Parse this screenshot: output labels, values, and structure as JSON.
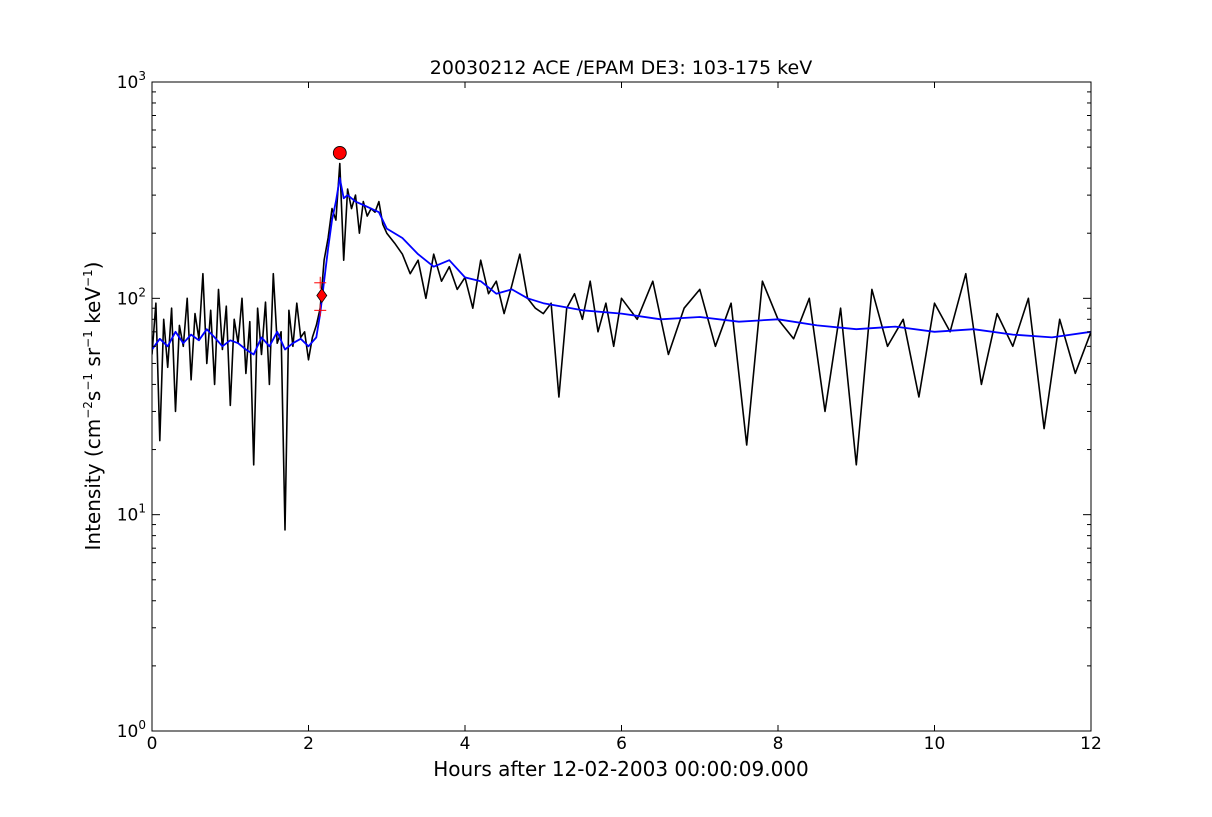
{
  "chart_data": {
    "type": "line",
    "title": "20030212 ACE /EPAM DE3: 103-175 keV",
    "xlabel": "Hours after 12-02-2003 00:00:09.000",
    "ylabel": {
      "prefix": "Intensity (cm",
      "sup1": "−2",
      "mid1": "s",
      "sup2": "−1",
      "mid2": " sr",
      "sup3": "−1",
      "mid3": " keV",
      "sup4": "−1",
      "suffix": ")"
    },
    "xlim": [
      0,
      12
    ],
    "ylim": [
      1,
      1000
    ],
    "yscale": "log",
    "grid": false,
    "x_ticks": [
      "0",
      "2",
      "4",
      "6",
      "8",
      "10",
      "12"
    ],
    "y_ticks": [
      {
        "base": "10",
        "exp": "0"
      },
      {
        "base": "10",
        "exp": "1"
      },
      {
        "base": "10",
        "exp": "2"
      },
      {
        "base": "10",
        "exp": "3"
      }
    ],
    "series": [
      {
        "color": "#000000",
        "description": "raw intensity",
        "x": [
          0.0,
          0.05,
          0.1,
          0.15,
          0.2,
          0.25,
          0.3,
          0.35,
          0.4,
          0.45,
          0.5,
          0.55,
          0.6,
          0.65,
          0.7,
          0.75,
          0.8,
          0.85,
          0.9,
          0.95,
          1.0,
          1.05,
          1.1,
          1.15,
          1.2,
          1.25,
          1.3,
          1.35,
          1.4,
          1.45,
          1.5,
          1.55,
          1.6,
          1.65,
          1.7,
          1.75,
          1.8,
          1.85,
          1.9,
          1.95,
          2.0,
          2.05,
          2.1,
          2.15,
          2.2,
          2.25,
          2.3,
          2.35,
          2.4,
          2.45,
          2.5,
          2.55,
          2.6,
          2.65,
          2.7,
          2.75,
          2.8,
          2.85,
          2.9,
          2.95,
          3.0,
          3.1,
          3.2,
          3.3,
          3.4,
          3.5,
          3.6,
          3.7,
          3.8,
          3.9,
          4.0,
          4.1,
          4.2,
          4.3,
          4.4,
          4.5,
          4.6,
          4.7,
          4.8,
          4.9,
          5.0,
          5.1,
          5.2,
          5.3,
          5.4,
          5.5,
          5.6,
          5.7,
          5.8,
          5.9,
          6.0,
          6.2,
          6.4,
          6.6,
          6.8,
          7.0,
          7.2,
          7.4,
          7.6,
          7.8,
          8.0,
          8.2,
          8.4,
          8.6,
          8.8,
          9.0,
          9.2,
          9.4,
          9.6,
          9.8,
          10.0,
          10.2,
          10.4,
          10.6,
          10.8,
          11.0,
          11.2,
          11.4,
          11.6,
          11.8,
          12.0
        ],
        "y": [
          55,
          95,
          22,
          80,
          48,
          90,
          30,
          75,
          60,
          100,
          42,
          85,
          65,
          130,
          50,
          88,
          40,
          110,
          58,
          92,
          32,
          80,
          62,
          100,
          45,
          78,
          17,
          90,
          55,
          96,
          40,
          130,
          62,
          70,
          8.5,
          88,
          60,
          95,
          66,
          70,
          52,
          66,
          75,
          90,
          150,
          190,
          260,
          230,
          420,
          150,
          320,
          260,
          300,
          200,
          280,
          240,
          260,
          250,
          280,
          220,
          200,
          180,
          160,
          130,
          150,
          100,
          160,
          120,
          140,
          110,
          125,
          90,
          150,
          105,
          120,
          85,
          115,
          160,
          100,
          90,
          85,
          95,
          35,
          90,
          105,
          80,
          120,
          70,
          95,
          60,
          100,
          80,
          120,
          55,
          90,
          110,
          60,
          95,
          21,
          120,
          80,
          65,
          100,
          30,
          90,
          17,
          110,
          60,
          80,
          35,
          95,
          70,
          130,
          40,
          85,
          60,
          100,
          25,
          80,
          45,
          70
        ]
      },
      {
        "color": "#0000ff",
        "description": "smoothed intensity",
        "x": [
          0.0,
          0.1,
          0.2,
          0.3,
          0.4,
          0.5,
          0.6,
          0.7,
          0.8,
          0.9,
          1.0,
          1.1,
          1.2,
          1.3,
          1.4,
          1.5,
          1.6,
          1.7,
          1.8,
          1.9,
          2.0,
          2.1,
          2.15,
          2.2,
          2.25,
          2.3,
          2.35,
          2.4,
          2.45,
          2.5,
          2.6,
          2.7,
          2.8,
          2.9,
          3.0,
          3.2,
          3.4,
          3.6,
          3.8,
          4.0,
          4.2,
          4.4,
          4.6,
          4.8,
          5.0,
          5.5,
          6.0,
          6.5,
          7.0,
          7.5,
          8.0,
          8.5,
          9.0,
          9.5,
          10.0,
          10.5,
          11.0,
          11.5,
          12.0
        ],
        "y": [
          58,
          65,
          60,
          70,
          62,
          68,
          64,
          72,
          66,
          60,
          64,
          62,
          58,
          55,
          66,
          60,
          70,
          58,
          62,
          65,
          60,
          66,
          85,
          120,
          170,
          230,
          280,
          360,
          290,
          300,
          280,
          270,
          260,
          250,
          210,
          190,
          160,
          140,
          150,
          125,
          120,
          105,
          110,
          100,
          95,
          88,
          85,
          80,
          82,
          78,
          80,
          75,
          72,
          74,
          70,
          72,
          68,
          66,
          70
        ]
      }
    ],
    "markers": [
      {
        "shape": "circle",
        "color": "#ff0000",
        "x": 2.4,
        "y": 470
      },
      {
        "shape": "diamond",
        "color": "#ff0000",
        "x": 2.17,
        "y": 103
      },
      {
        "shape": "plus",
        "color": "#ff0000",
        "x": 2.15,
        "y": 118
      },
      {
        "shape": "plus",
        "color": "#ff0000",
        "x": 2.15,
        "y": 88
      }
    ]
  }
}
